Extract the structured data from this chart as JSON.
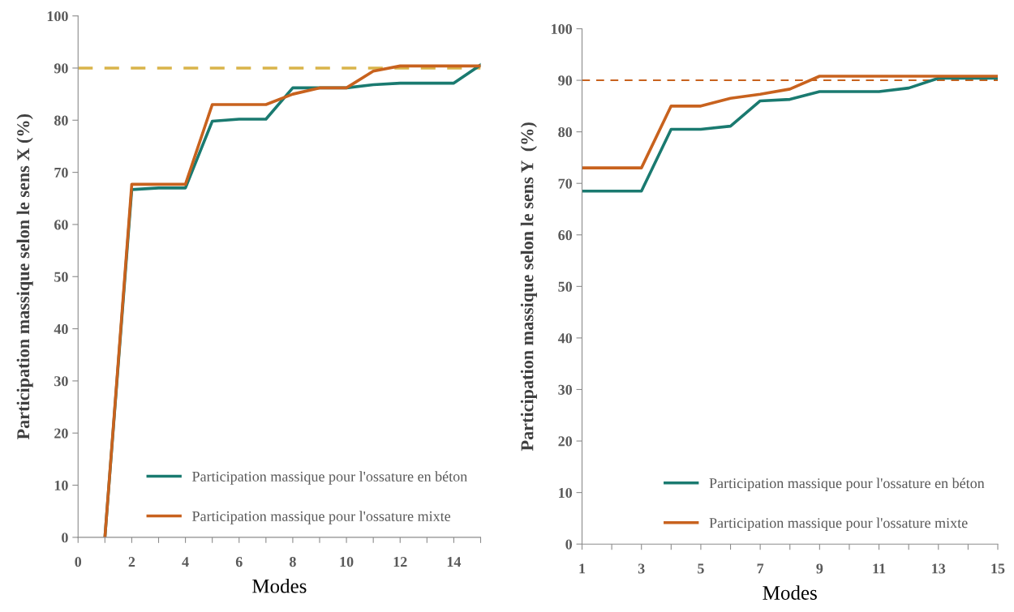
{
  "chart_data": [
    {
      "type": "line",
      "xlabel": "Modes",
      "ylabel": "Participation massique selon le sens X (%)",
      "x": [
        1,
        2,
        3,
        4,
        5,
        6,
        7,
        8,
        9,
        10,
        11,
        12,
        13,
        14,
        15
      ],
      "series": [
        {
          "name": "Participation massique pour l'ossature en béton",
          "color": "#1a7a70",
          "values": [
            0,
            66.7,
            67,
            67,
            79.8,
            80.2,
            80.2,
            86.2,
            86.2,
            86.2,
            86.8,
            87.1,
            87.1,
            87.1,
            90.6
          ]
        },
        {
          "name": "Participation massique pour l'ossature mixte",
          "color": "#c8621e",
          "values": [
            0,
            67.7,
            67.7,
            67.7,
            83,
            83,
            83,
            85,
            86.2,
            86.2,
            89.4,
            90.4,
            90.4,
            90.4,
            90.4
          ]
        }
      ],
      "xlim": [
        0,
        15
      ],
      "xticks": [
        0,
        {
          "value": 1,
          "label": null
        },
        2,
        {
          "value": 3,
          "label": null
        },
        4,
        {
          "value": 5,
          "label": null
        },
        6,
        {
          "value": 7,
          "label": null
        },
        8,
        {
          "value": 9,
          "label": null
        },
        10,
        {
          "value": 11,
          "label": null
        },
        12,
        {
          "value": 13,
          "label": null
        },
        14,
        {
          "value": 15,
          "label": null
        }
      ],
      "ylim": [
        0,
        100
      ],
      "yticks": [
        0,
        10,
        20,
        30,
        40,
        50,
        60,
        70,
        80,
        90,
        100
      ],
      "ref_lines": [
        {
          "axis": "y",
          "value": 90,
          "color": "#d9b44a",
          "line_style": "dashed"
        }
      ],
      "legend": "bottom right",
      "grid": false,
      "marker": "none",
      "line_style": "solid"
    },
    {
      "type": "line",
      "xlabel": "Modes",
      "ylabel": "Participation massique selon le sens Y  (%)",
      "x": [
        1,
        2,
        3,
        4,
        5,
        6,
        7,
        8,
        9,
        10,
        11,
        12,
        13,
        14,
        15
      ],
      "series": [
        {
          "name": "Participation massique pour l'ossature en béton",
          "color": "#1a7a70",
          "values": [
            68.5,
            68.5,
            68.5,
            80.5,
            80.5,
            81.1,
            86,
            86.3,
            87.8,
            87.8,
            87.8,
            88.5,
            90.4,
            90.4,
            90.4
          ]
        },
        {
          "name": "Participation massique pour l'ossature mixte",
          "color": "#c8621e",
          "values": [
            73,
            73,
            73,
            85,
            85,
            86.5,
            87.3,
            88.3,
            90.8,
            90.8,
            90.8,
            90.8,
            90.8,
            90.8,
            90.8
          ]
        }
      ],
      "xlim": [
        1,
        15
      ],
      "xticks": [
        1,
        {
          "value": 2,
          "label": null
        },
        3,
        {
          "value": 4,
          "label": null
        },
        5,
        {
          "value": 6,
          "label": null
        },
        7,
        {
          "value": 8,
          "label": null
        },
        9,
        {
          "value": 10,
          "label": null
        },
        11,
        {
          "value": 12,
          "label": null
        },
        13,
        {
          "value": 14,
          "label": null
        },
        15
      ],
      "ylim": [
        0,
        100
      ],
      "yticks": [
        0,
        10,
        20,
        30,
        40,
        50,
        60,
        70,
        80,
        90,
        100
      ],
      "ref_lines": [
        {
          "axis": "y",
          "value": 90,
          "color": "#c8621e",
          "line_style": "dashed"
        }
      ],
      "legend": "bottom right",
      "grid": false,
      "marker": "none",
      "line_style": "solid"
    }
  ]
}
